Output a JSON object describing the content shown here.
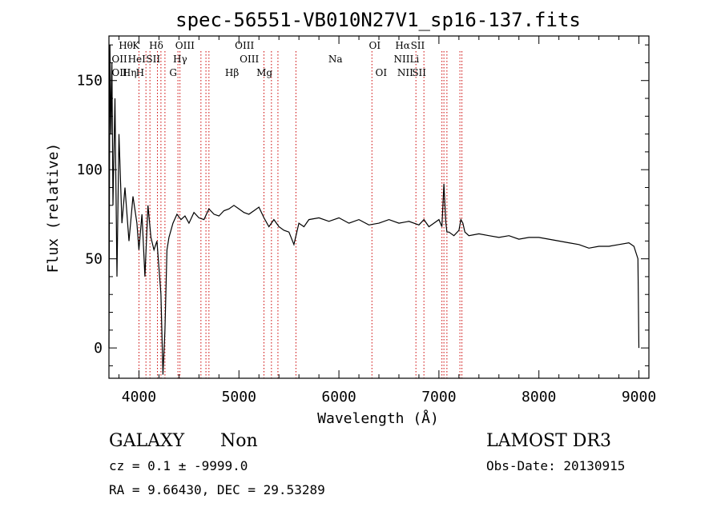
{
  "chart_data": {
    "type": "line",
    "title": "spec-56551-VB010N27V1_sp16-137.fits",
    "xlabel": "Wavelength (Å)",
    "ylabel": "Flux (relative)",
    "xlim": [
      3700,
      9100
    ],
    "ylim": [
      -17,
      175
    ],
    "xticks": [
      4000,
      5000,
      6000,
      7000,
      8000,
      9000
    ],
    "yticks": [
      0,
      50,
      100,
      150
    ],
    "grid": false,
    "series": [
      {
        "name": "flux",
        "x": [
          3700,
          3710,
          3720,
          3730,
          3740,
          3760,
          3780,
          3800,
          3830,
          3860,
          3900,
          3940,
          3980,
          4000,
          4030,
          4060,
          4090,
          4120,
          4150,
          4180,
          4200,
          4220,
          4240,
          4260,
          4280,
          4300,
          4340,
          4380,
          4420,
          4460,
          4500,
          4550,
          4600,
          4650,
          4700,
          4750,
          4800,
          4850,
          4900,
          4950,
          5000,
          5050,
          5100,
          5150,
          5200,
          5250,
          5300,
          5350,
          5400,
          5450,
          5500,
          5550,
          5600,
          5650,
          5700,
          5800,
          5900,
          6000,
          6100,
          6200,
          6300,
          6400,
          6500,
          6600,
          6700,
          6800,
          6850,
          6900,
          6950,
          7000,
          7030,
          7040,
          7050,
          7060,
          7070,
          7080,
          7100,
          7150,
          7200,
          7220,
          7240,
          7260,
          7300,
          7400,
          7500,
          7600,
          7700,
          7800,
          7900,
          8000,
          8100,
          8200,
          8300,
          8400,
          8500,
          8600,
          8700,
          8800,
          8900,
          8950,
          8990,
          9000
        ],
        "y": [
          0,
          170,
          120,
          160,
          80,
          140,
          40,
          120,
          70,
          90,
          60,
          85,
          70,
          55,
          75,
          40,
          80,
          62,
          55,
          60,
          45,
          30,
          -15,
          10,
          55,
          62,
          70,
          75,
          72,
          74,
          70,
          76,
          73,
          72,
          78,
          75,
          74,
          77,
          78,
          80,
          78,
          76,
          75,
          77,
          79,
          73,
          68,
          72,
          68,
          66,
          65,
          58,
          70,
          68,
          72,
          73,
          71,
          73,
          70,
          72,
          69,
          70,
          72,
          70,
          71,
          69,
          72,
          68,
          70,
          72,
          68,
          80,
          92,
          80,
          70,
          65,
          65,
          63,
          66,
          72,
          70,
          65,
          63,
          64,
          63,
          62,
          63,
          61,
          62,
          62,
          61,
          60,
          59,
          58,
          56,
          57,
          57,
          58,
          59,
          57,
          50,
          0
        ]
      }
    ],
    "line_markers": [
      {
        "label": "Hθ",
        "x": 3798,
        "row": 0
      },
      {
        "label": "OII",
        "x": 3727,
        "row": 1
      },
      {
        "label": "OII",
        "x": 3727,
        "row": 2
      },
      {
        "label": "HeI",
        "x": 3889,
        "row": 1
      },
      {
        "label": "Hη",
        "x": 3835,
        "row": 2
      },
      {
        "label": "K",
        "x": 3934,
        "row": 0
      },
      {
        "label": "H",
        "x": 3969,
        "row": 2
      },
      {
        "label": "SII",
        "x": 4072,
        "row": 1
      },
      {
        "label": "Hδ",
        "x": 4102,
        "row": 0
      },
      {
        "label": "OIII",
        "x": 4363,
        "row": 0
      },
      {
        "label": "Hγ",
        "x": 4341,
        "row": 1
      },
      {
        "label": "G",
        "x": 4304,
        "row": 2
      },
      {
        "label": "OIII",
        "x": 4959,
        "row": 0
      },
      {
        "label": "OIII",
        "x": 5007,
        "row": 1
      },
      {
        "label": "Hβ",
        "x": 4861,
        "row": 2
      },
      {
        "label": "Mg",
        "x": 5175,
        "row": 2
      },
      {
        "label": "Na",
        "x": 5894,
        "row": 1
      },
      {
        "label": "OI",
        "x": 6300,
        "row": 0
      },
      {
        "label": "OI",
        "x": 6364,
        "row": 2
      },
      {
        "label": "Hα",
        "x": 6563,
        "row": 0
      },
      {
        "label": "NII",
        "x": 6548,
        "row": 1
      },
      {
        "label": "NII",
        "x": 6583,
        "row": 2
      },
      {
        "label": "SII",
        "x": 6717,
        "row": 0
      },
      {
        "label": "Li",
        "x": 6708,
        "row": 1
      },
      {
        "label": "SII",
        "x": 6731,
        "row": 2
      }
    ],
    "marker_lines_x": [
      4000,
      4070,
      4110,
      4185,
      4220,
      4260,
      4390,
      4410,
      4620,
      4670,
      4700,
      5250,
      5325,
      5390,
      5570,
      6330,
      6770,
      6850,
      7030,
      7050,
      7080,
      7210,
      7230
    ]
  },
  "info": {
    "object_class": "GALAXY",
    "subclass": "Non",
    "survey": "LAMOST DR3",
    "cz": "cz = 0.1 ± -9999.0",
    "obs_date": "Obs-Date: 20130915",
    "radec": "RA =   9.66430, DEC =  29.53289"
  },
  "colors": {
    "axes": "#000000",
    "series": "#000000",
    "markers": "#cc0000"
  }
}
